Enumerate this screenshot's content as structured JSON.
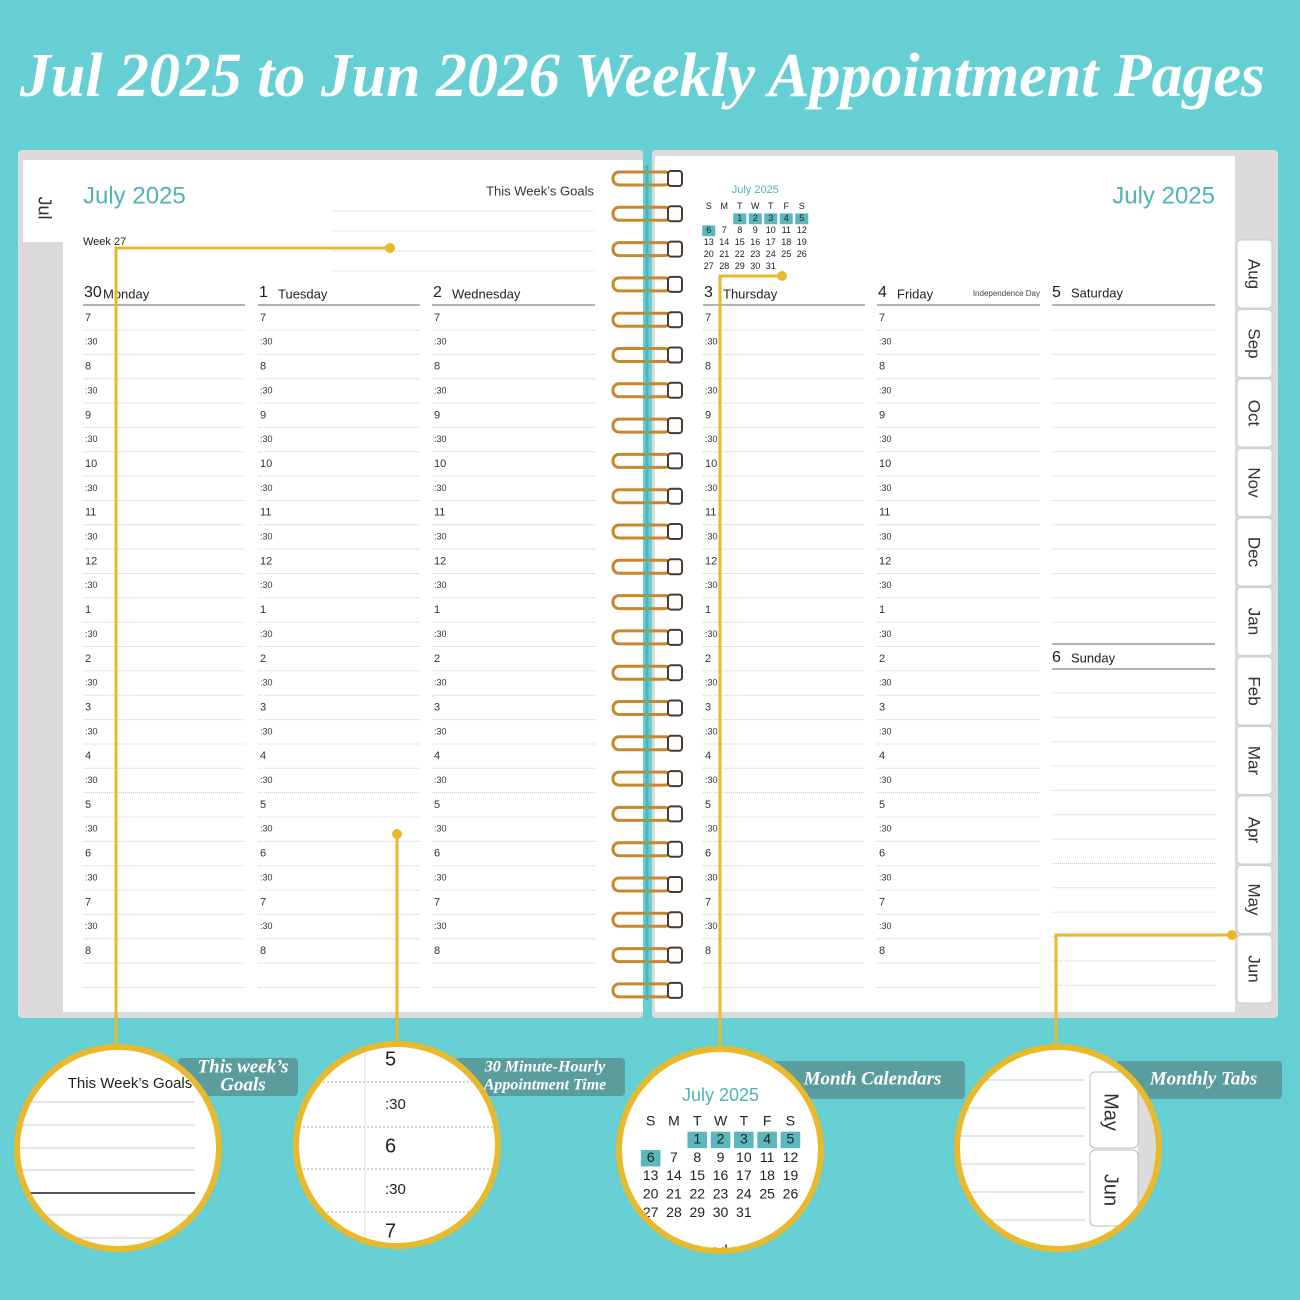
{
  "header": {
    "title": "Jul 2025 to Jun 2026 Weekly Appointment Pages"
  },
  "left_page": {
    "tab": "Jul",
    "month": "July 2025",
    "goals_label": "This Week’s Goals",
    "week": "Week 27",
    "days": [
      {
        "date": "30",
        "name": "Monday"
      },
      {
        "date": "1",
        "name": "Tuesday"
      },
      {
        "date": "2",
        "name": "Wednesday"
      }
    ]
  },
  "right_page": {
    "month": "July 2025",
    "days": [
      {
        "date": "3",
        "name": "Thursday"
      },
      {
        "date": "4",
        "name": "Friday",
        "note": "Independence Day"
      },
      {
        "date": "5",
        "name": "Saturday"
      },
      {
        "date": "6",
        "name": "Sunday"
      }
    ],
    "tabs": [
      "Aug",
      "Sep",
      "Oct",
      "Nov",
      "Dec",
      "Jan",
      "Feb",
      "Mar",
      "Apr",
      "May",
      "Jun"
    ]
  },
  "hours": [
    "7",
    ":30",
    "8",
    ":30",
    "9",
    ":30",
    "10",
    ":30",
    "11",
    ":30",
    "12",
    ":30",
    "1",
    ":30",
    "2",
    ":30",
    "3",
    ":30",
    "4",
    ":30",
    "5",
    ":30",
    "6",
    ":30",
    "7",
    ":30",
    "8"
  ],
  "mini_calendar": {
    "title": "July 2025",
    "weekdays": [
      "S",
      "M",
      "T",
      "W",
      "T",
      "F",
      "S"
    ],
    "weeks": [
      [
        null,
        null,
        1,
        2,
        3,
        4,
        5
      ],
      [
        6,
        7,
        8,
        9,
        10,
        11,
        12
      ],
      [
        13,
        14,
        15,
        16,
        17,
        18,
        19
      ],
      [
        20,
        21,
        22,
        23,
        24,
        25,
        26
      ],
      [
        27,
        28,
        29,
        30,
        31,
        null,
        null
      ]
    ],
    "highlighted": [
      1,
      2,
      3,
      4,
      5,
      6
    ],
    "highlight_color": "#5bb7bb"
  },
  "callouts": [
    {
      "lines": [
        "This week’s",
        "Goals"
      ]
    },
    {
      "lines": [
        "30 Minute-Hourly",
        "Appointment Time"
      ]
    },
    {
      "lines": [
        "Month Calendars"
      ]
    },
    {
      "lines": [
        "Monthly Tabs"
      ]
    }
  ]
}
